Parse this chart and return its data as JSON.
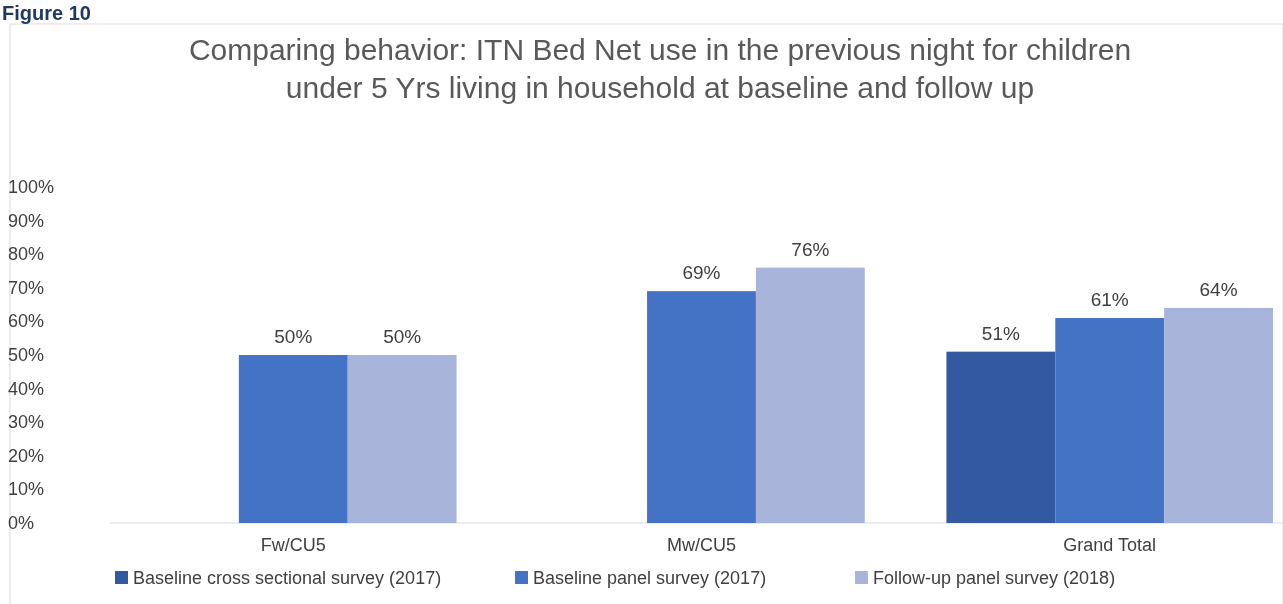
{
  "chart_data": {
    "type": "bar",
    "title": "Comparing behavior:  ITN Bed Net use in the previous night for children\nunder 5 Yrs living in household at baseline and follow up",
    "annotations": [
      "Figure 10"
    ],
    "categories": [
      "Fw/CU5",
      "Mw/CU5",
      "Grand Total"
    ],
    "series": [
      {
        "name": "Baseline cross sectional survey (2017)",
        "color": "#335aa1",
        "values": [
          null,
          null,
          51
        ],
        "value_labels": [
          null,
          null,
          "51%"
        ]
      },
      {
        "name": "Baseline panel survey (2017)",
        "color": "#4472c4",
        "values": [
          50,
          69,
          61
        ],
        "value_labels": [
          "50%",
          "69%",
          "61%"
        ]
      },
      {
        "name": "Follow-up panel survey (2018)",
        "color": "#a8b4da",
        "values": [
          50,
          76,
          64
        ],
        "value_labels": [
          "50%",
          "76%",
          "64%"
        ]
      }
    ],
    "ylim": [
      0,
      100
    ],
    "yticks": [
      {
        "value": 0,
        "label": "0%"
      },
      {
        "value": 10,
        "label": "10%"
      },
      {
        "value": 20,
        "label": "20%"
      },
      {
        "value": 30,
        "label": "30%"
      },
      {
        "value": 40,
        "label": "40%"
      },
      {
        "value": 50,
        "label": "50%"
      },
      {
        "value": 60,
        "label": "60%"
      },
      {
        "value": 70,
        "label": "70%"
      },
      {
        "value": 80,
        "label": "80%"
      },
      {
        "value": 90,
        "label": "90%"
      },
      {
        "value": 100,
        "label": "100%"
      }
    ],
    "legend": "bottom"
  }
}
